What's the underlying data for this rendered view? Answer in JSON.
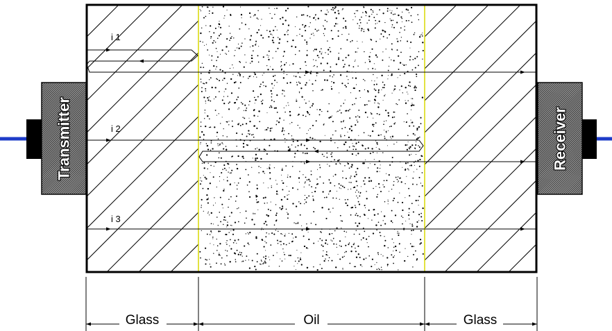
{
  "labels": {
    "transmitter": "Transmitter",
    "receiver": "Receiver",
    "ray_1": "i 1",
    "ray_2": "i 2",
    "ray_3": "i 3"
  },
  "dimensions": {
    "glass_left": "Glass",
    "oil": "Oil",
    "glass_right": "Glass"
  },
  "colors": {
    "cable": "#1e3cc8",
    "interface_line": "#d8d800",
    "outline": "#000000",
    "background": "#ffffff"
  }
}
